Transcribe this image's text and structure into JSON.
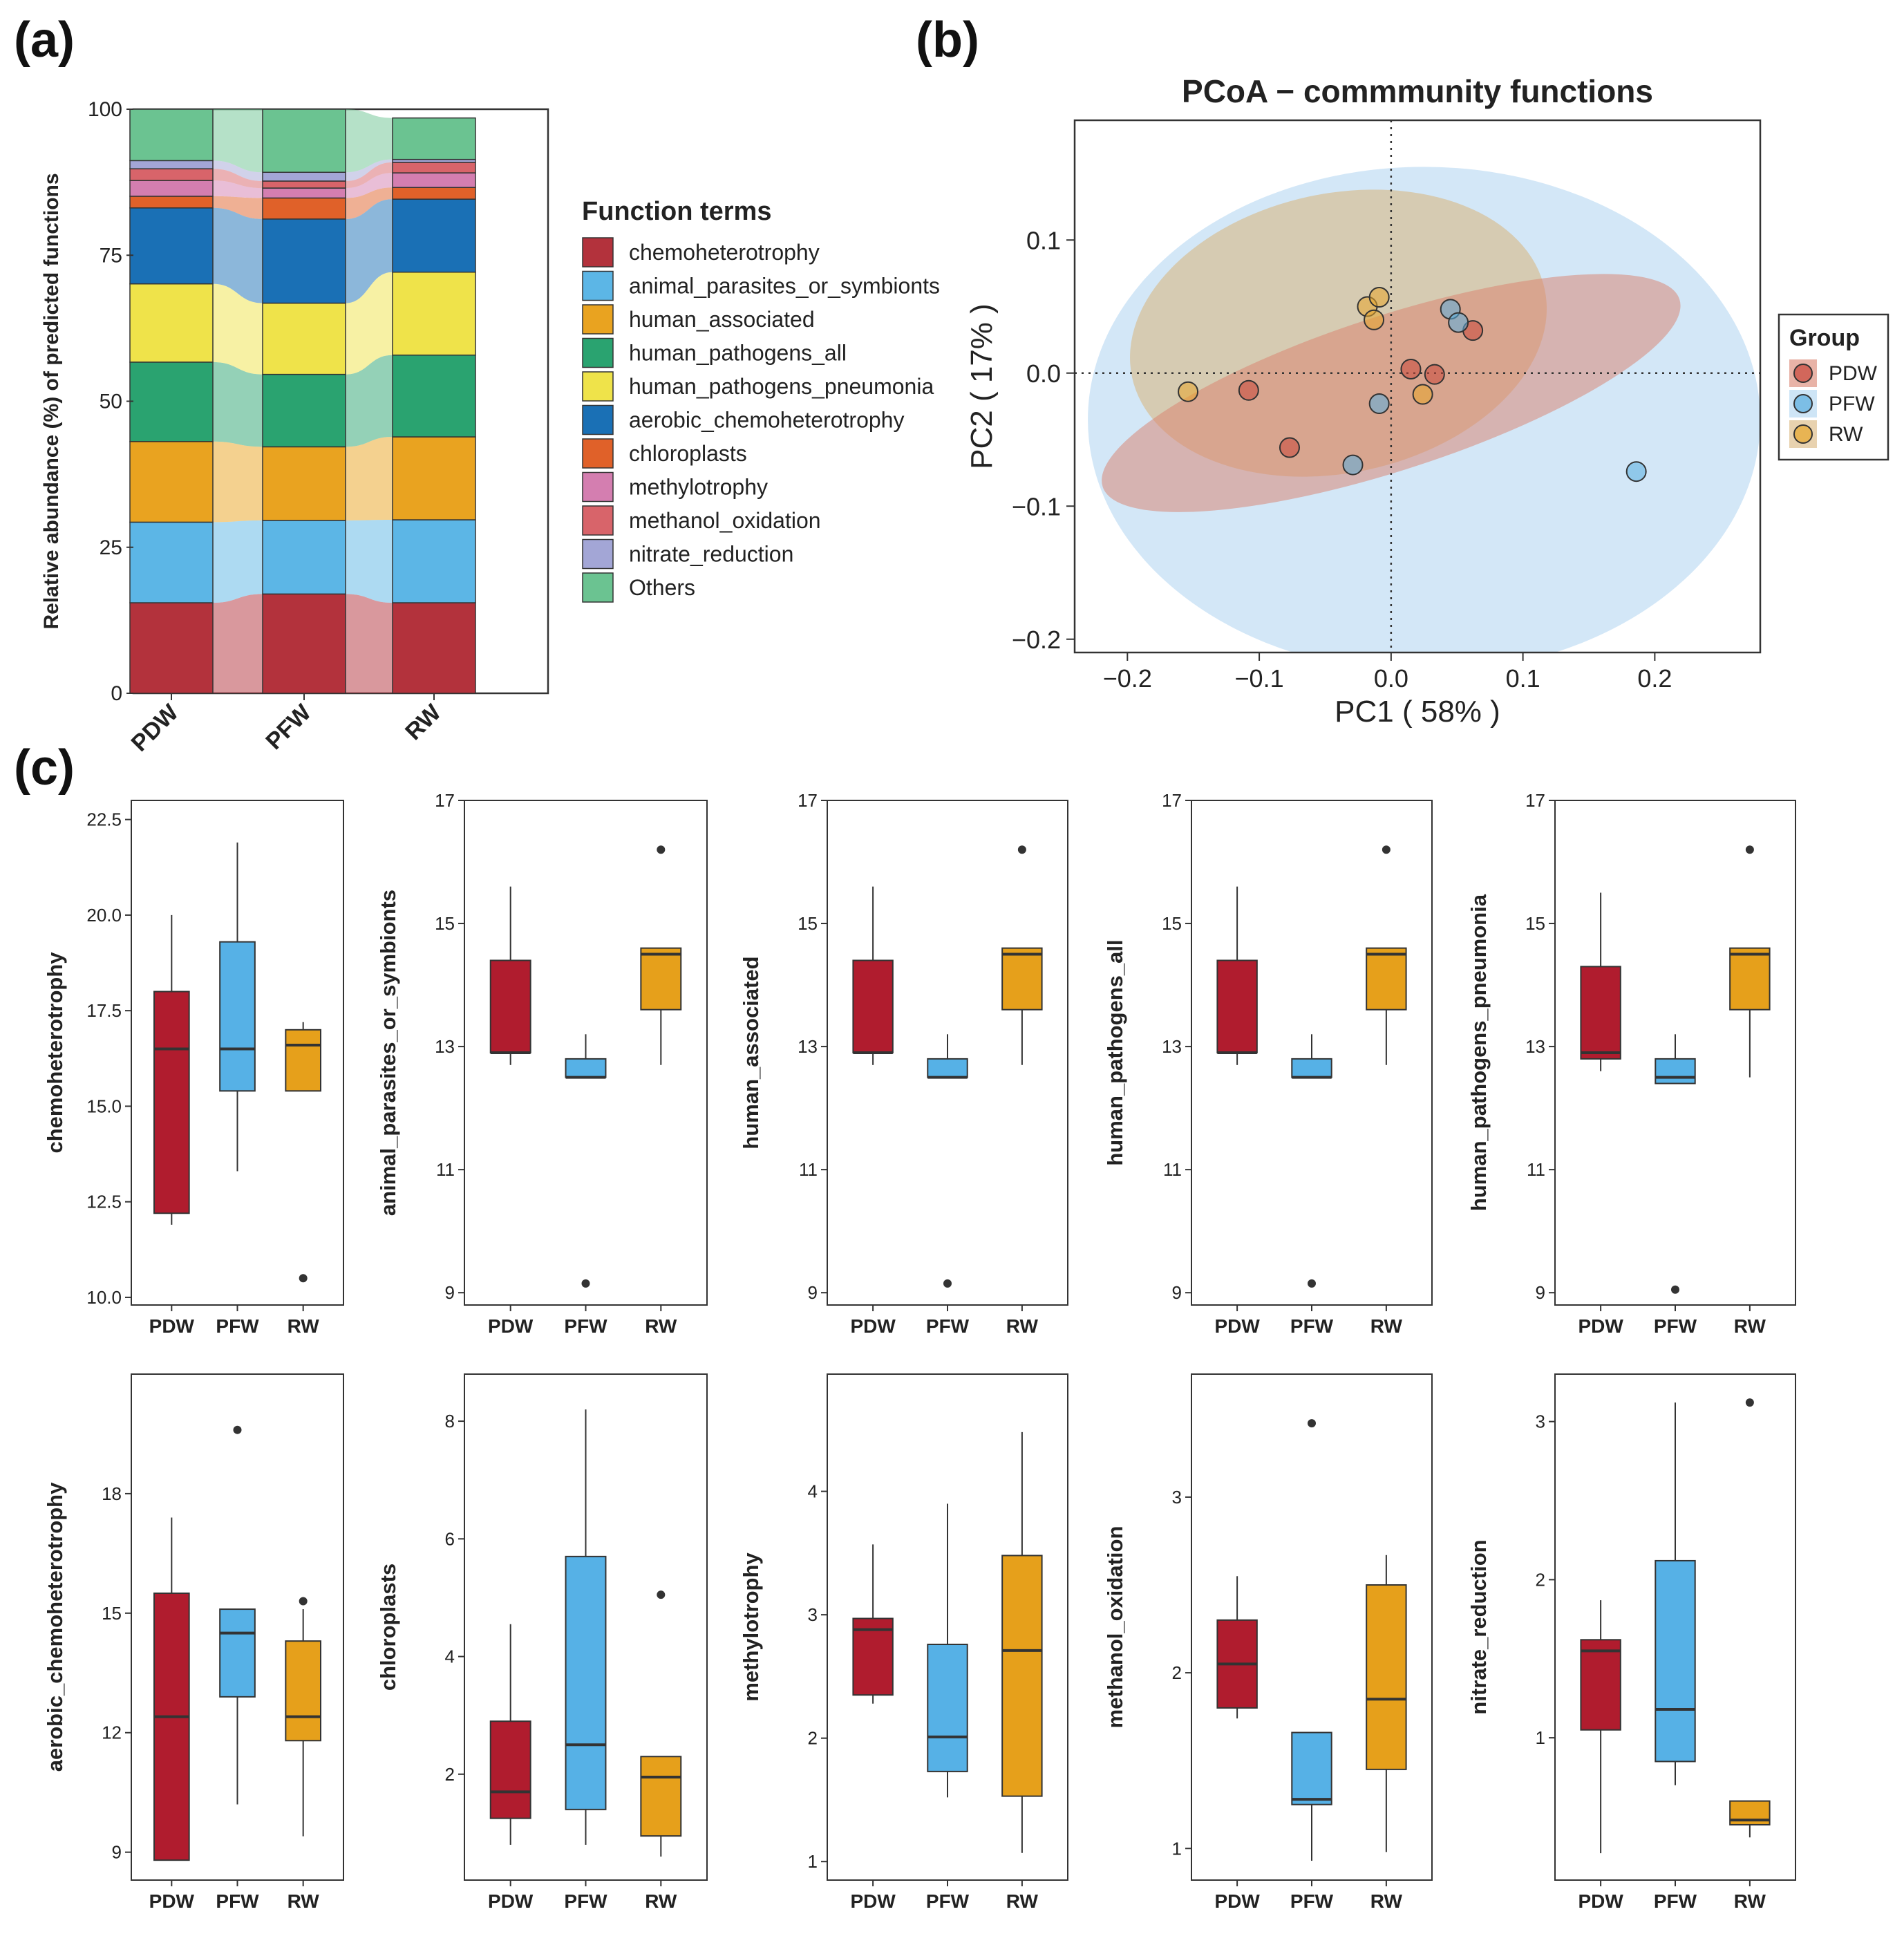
{
  "panels": {
    "a": {
      "label": "(a)"
    },
    "b": {
      "label": "(b)"
    },
    "c": {
      "label": "(c)"
    }
  },
  "colors": {
    "PDW": "#b01c2e",
    "PFW": "#56b1e6",
    "RW": "#e6a01b",
    "outlier": "#333333"
  },
  "chart_data": [
    {
      "id": "a",
      "type": "bar",
      "stacked": true,
      "categories": [
        "PDW",
        "PFW",
        "RW"
      ],
      "ylabel": "Relative abundance (%) of predicted functions",
      "ylim": [
        0,
        100
      ],
      "yticks": [
        0,
        25,
        50,
        75,
        100
      ],
      "legend_title": "Function terms",
      "series": [
        {
          "name": "chemoheterotrophy",
          "color": "#b3323c",
          "values": [
            15.5,
            17.0,
            15.5
          ]
        },
        {
          "name": "animal_parasites_or_symbionts",
          "color": "#5cb6e6",
          "values": [
            13.8,
            12.6,
            14.2
          ]
        },
        {
          "name": "human_associated",
          "color": "#e9a320",
          "values": [
            13.8,
            12.6,
            14.2
          ]
        },
        {
          "name": "human_pathogens_all",
          "color": "#2aa370",
          "values": [
            13.6,
            12.4,
            14.0
          ]
        },
        {
          "name": "human_pathogens_pneumonia",
          "color": "#efe34a",
          "values": [
            13.4,
            12.2,
            14.2
          ]
        },
        {
          "name": "aerobic_chemoheterotrophy",
          "color": "#1a70b5",
          "values": [
            13.0,
            14.4,
            12.5
          ]
        },
        {
          "name": "chloroplasts",
          "color": "#e06129",
          "values": [
            2.0,
            3.6,
            2.0
          ]
        },
        {
          "name": "methylotrophy",
          "color": "#d47eb0",
          "values": [
            2.7,
            1.7,
            2.5
          ]
        },
        {
          "name": "methanol_oxidation",
          "color": "#d8646a",
          "values": [
            2.0,
            1.2,
            1.8
          ]
        },
        {
          "name": "nitrate_reduction",
          "color": "#a3a6d6",
          "values": [
            1.4,
            1.5,
            0.5
          ]
        },
        {
          "name": "Others",
          "color": "#6bc391",
          "values": [
            8.8,
            10.8,
            7.1
          ]
        }
      ]
    },
    {
      "id": "b",
      "type": "scatter",
      "title": "PCoA − commmunity functions",
      "xlabel": "PC1 ( 58% )",
      "ylabel": "PC2 ( 17% )",
      "xlim": [
        -0.24,
        0.28
      ],
      "ylim": [
        -0.21,
        0.19
      ],
      "xticks": [
        -0.2,
        -0.1,
        0.0,
        0.1,
        0.2
      ],
      "xtick_labels": [
        "−0.2",
        "−0.1",
        "0.0",
        "0.1",
        "0.2"
      ],
      "yticks": [
        -0.2,
        -0.1,
        0.0,
        0.1
      ],
      "ytick_labels": [
        "−0.2",
        "−0.1",
        "0.0",
        "0.1"
      ],
      "legend_title": "Group",
      "groups": [
        {
          "name": "PDW",
          "color": "#c9473a",
          "fill": "#d9806c"
        },
        {
          "name": "PFW",
          "color": "#5aaee0",
          "fill": "#aed3f0"
        },
        {
          "name": "RW",
          "color": "#e8a62c",
          "fill": "#d9b47a"
        }
      ],
      "ellipses": [
        {
          "group": "PFW",
          "cx": 0.025,
          "cy": -0.035,
          "rx": 0.255,
          "ry": 0.19,
          "angle": 0,
          "opacity": 0.55
        },
        {
          "group": "RW",
          "cx": -0.04,
          "cy": 0.03,
          "rx": 0.16,
          "ry": 0.105,
          "angle": 12,
          "opacity": 0.55
        },
        {
          "group": "PDW",
          "cx": 0.0,
          "cy": -0.015,
          "rx": 0.23,
          "ry": 0.058,
          "angle": 18,
          "opacity": 0.5
        }
      ],
      "points": [
        {
          "group": "PDW",
          "x": -0.108,
          "y": -0.013
        },
        {
          "group": "PDW",
          "x": -0.077,
          "y": -0.056
        },
        {
          "group": "PDW",
          "x": 0.015,
          "y": 0.003
        },
        {
          "group": "PDW",
          "x": 0.033,
          "y": -0.001
        },
        {
          "group": "PDW",
          "x": 0.062,
          "y": 0.032
        },
        {
          "group": "PFW",
          "x": -0.029,
          "y": -0.069
        },
        {
          "group": "PFW",
          "x": -0.009,
          "y": -0.023
        },
        {
          "group": "PFW",
          "x": 0.045,
          "y": 0.048
        },
        {
          "group": "PFW",
          "x": 0.051,
          "y": 0.038
        },
        {
          "group": "PFW",
          "x": 0.186,
          "y": -0.074
        },
        {
          "group": "RW",
          "x": -0.154,
          "y": -0.014
        },
        {
          "group": "RW",
          "x": -0.018,
          "y": 0.05
        },
        {
          "group": "RW",
          "x": -0.013,
          "y": 0.04
        },
        {
          "group": "RW",
          "x": -0.009,
          "y": 0.057
        },
        {
          "group": "RW",
          "x": 0.024,
          "y": -0.016
        }
      ]
    },
    {
      "id": "c1",
      "type": "box",
      "ylabel": "chemoheterotrophy",
      "categories": [
        "PDW",
        "PFW",
        "RW"
      ],
      "ylim": [
        9.8,
        23.0
      ],
      "yticks": [
        10.0,
        12.5,
        15.0,
        17.5,
        20.0,
        22.5
      ],
      "ytick_labels": [
        "10.0",
        "12.5",
        "15.0",
        "17.5",
        "20.0",
        "22.5"
      ],
      "boxes": [
        {
          "min": 11.9,
          "q1": 12.2,
          "median": 16.5,
          "q3": 18.0,
          "max": 20.0,
          "outliers": []
        },
        {
          "min": 13.3,
          "q1": 15.4,
          "median": 16.5,
          "q3": 19.3,
          "max": 21.9,
          "outliers": []
        },
        {
          "min": 15.4,
          "q1": 15.4,
          "median": 16.6,
          "q3": 17.0,
          "max": 17.2,
          "outliers": [
            10.5
          ]
        }
      ]
    },
    {
      "id": "c2",
      "type": "box",
      "ylabel": "animal_parasites_or_symbionts",
      "categories": [
        "PDW",
        "PFW",
        "RW"
      ],
      "ylim": [
        8.8,
        17.0
      ],
      "yticks": [
        9,
        11,
        13,
        15,
        17
      ],
      "ytick_labels": [
        "9",
        "11",
        "13",
        "15",
        "17"
      ],
      "boxes": [
        {
          "min": 12.7,
          "q1": 12.9,
          "median": 12.9,
          "q3": 14.4,
          "max": 15.6,
          "outliers": []
        },
        {
          "min": 12.5,
          "q1": 12.5,
          "median": 12.5,
          "q3": 12.8,
          "max": 13.2,
          "outliers": [
            9.15
          ]
        },
        {
          "min": 12.7,
          "q1": 13.6,
          "median": 14.5,
          "q3": 14.6,
          "max": 14.6,
          "outliers": [
            16.2
          ]
        }
      ]
    },
    {
      "id": "c3",
      "type": "box",
      "ylabel": "human_associated",
      "categories": [
        "PDW",
        "PFW",
        "RW"
      ],
      "ylim": [
        8.8,
        17.0
      ],
      "yticks": [
        9,
        11,
        13,
        15,
        17
      ],
      "ytick_labels": [
        "9",
        "11",
        "13",
        "15",
        "17"
      ],
      "boxes": [
        {
          "min": 12.7,
          "q1": 12.9,
          "median": 12.9,
          "q3": 14.4,
          "max": 15.6,
          "outliers": []
        },
        {
          "min": 12.5,
          "q1": 12.5,
          "median": 12.5,
          "q3": 12.8,
          "max": 13.2,
          "outliers": [
            9.15
          ]
        },
        {
          "min": 12.7,
          "q1": 13.6,
          "median": 14.5,
          "q3": 14.6,
          "max": 14.6,
          "outliers": [
            16.2
          ]
        }
      ]
    },
    {
      "id": "c4",
      "type": "box",
      "ylabel": "human_pathogens_all",
      "categories": [
        "PDW",
        "PFW",
        "RW"
      ],
      "ylim": [
        8.8,
        17.0
      ],
      "yticks": [
        9,
        11,
        13,
        15,
        17
      ],
      "ytick_labels": [
        "9",
        "11",
        "13",
        "15",
        "17"
      ],
      "boxes": [
        {
          "min": 12.7,
          "q1": 12.9,
          "median": 12.9,
          "q3": 14.4,
          "max": 15.6,
          "outliers": []
        },
        {
          "min": 12.5,
          "q1": 12.5,
          "median": 12.5,
          "q3": 12.8,
          "max": 13.2,
          "outliers": [
            9.15
          ]
        },
        {
          "min": 12.7,
          "q1": 13.6,
          "median": 14.5,
          "q3": 14.6,
          "max": 14.6,
          "outliers": [
            16.2
          ]
        }
      ]
    },
    {
      "id": "c5",
      "type": "box",
      "ylabel": "human_pathogens_pneumonia",
      "categories": [
        "PDW",
        "PFW",
        "RW"
      ],
      "ylim": [
        8.8,
        17.0
      ],
      "yticks": [
        9,
        11,
        13,
        15,
        17
      ],
      "ytick_labels": [
        "9",
        "11",
        "13",
        "15",
        "17"
      ],
      "boxes": [
        {
          "min": 12.6,
          "q1": 12.8,
          "median": 12.9,
          "q3": 14.3,
          "max": 15.5,
          "outliers": []
        },
        {
          "min": 12.4,
          "q1": 12.4,
          "median": 12.5,
          "q3": 12.8,
          "max": 13.2,
          "outliers": [
            9.05
          ]
        },
        {
          "min": 12.5,
          "q1": 13.6,
          "median": 14.5,
          "q3": 14.6,
          "max": 14.6,
          "outliers": [
            16.2
          ]
        }
      ]
    },
    {
      "id": "c6",
      "type": "box",
      "ylabel": "aerobic_chemoheterotrophy",
      "categories": [
        "PDW",
        "PFW",
        "RW"
      ],
      "ylim": [
        8.3,
        21.0
      ],
      "yticks": [
        9,
        12,
        15,
        18
      ],
      "ytick_labels": [
        "9",
        "12",
        "15",
        "18"
      ],
      "boxes": [
        {
          "min": 8.8,
          "q1": 8.8,
          "median": 12.4,
          "q3": 15.5,
          "max": 17.4,
          "outliers": []
        },
        {
          "min": 10.2,
          "q1": 12.9,
          "median": 14.5,
          "q3": 15.1,
          "max": 15.1,
          "outliers": [
            19.6
          ]
        },
        {
          "min": 9.4,
          "q1": 11.8,
          "median": 12.4,
          "q3": 14.3,
          "max": 15.1,
          "outliers": [
            15.3
          ]
        }
      ]
    },
    {
      "id": "c7",
      "type": "box",
      "ylabel": "chloroplasts",
      "categories": [
        "PDW",
        "PFW",
        "RW"
      ],
      "ylim": [
        0.2,
        8.8
      ],
      "yticks": [
        2,
        4,
        6,
        8
      ],
      "ytick_labels": [
        "2",
        "4",
        "6",
        "8"
      ],
      "boxes": [
        {
          "min": 0.8,
          "q1": 1.25,
          "median": 1.7,
          "q3": 2.9,
          "max": 4.55,
          "outliers": []
        },
        {
          "min": 0.8,
          "q1": 1.4,
          "median": 2.5,
          "q3": 5.7,
          "max": 8.2,
          "outliers": []
        },
        {
          "min": 0.6,
          "q1": 0.95,
          "median": 1.95,
          "q3": 2.3,
          "max": 2.3,
          "outliers": [
            5.05
          ]
        }
      ]
    },
    {
      "id": "c8",
      "type": "box",
      "ylabel": "methylotrophy",
      "categories": [
        "PDW",
        "PFW",
        "RW"
      ],
      "ylim": [
        0.85,
        4.95
      ],
      "yticks": [
        1,
        2,
        3,
        4
      ],
      "ytick_labels": [
        "1",
        "2",
        "3",
        "4"
      ],
      "boxes": [
        {
          "min": 2.28,
          "q1": 2.35,
          "median": 2.88,
          "q3": 2.97,
          "max": 3.57,
          "outliers": []
        },
        {
          "min": 1.52,
          "q1": 1.73,
          "median": 2.01,
          "q3": 2.76,
          "max": 3.9,
          "outliers": []
        },
        {
          "min": 1.07,
          "q1": 1.53,
          "median": 2.71,
          "q3": 3.48,
          "max": 4.48,
          "outliers": []
        }
      ]
    },
    {
      "id": "c9",
      "type": "box",
      "ylabel": "methanol_oxidation",
      "categories": [
        "PDW",
        "PFW",
        "RW"
      ],
      "ylim": [
        0.82,
        3.7
      ],
      "yticks": [
        1,
        2,
        3
      ],
      "ytick_labels": [
        "1",
        "2",
        "3"
      ],
      "boxes": [
        {
          "min": 1.74,
          "q1": 1.8,
          "median": 2.05,
          "q3": 2.3,
          "max": 2.55,
          "outliers": []
        },
        {
          "min": 0.93,
          "q1": 1.25,
          "median": 1.28,
          "q3": 1.66,
          "max": 1.66,
          "outliers": [
            3.42
          ]
        },
        {
          "min": 0.98,
          "q1": 1.45,
          "median": 1.85,
          "q3": 2.5,
          "max": 2.67,
          "outliers": []
        }
      ]
    },
    {
      "id": "c10",
      "type": "box",
      "ylabel": "nitrate_reduction",
      "categories": [
        "PDW",
        "PFW",
        "RW"
      ],
      "ylim": [
        0.1,
        3.3
      ],
      "yticks": [
        1,
        2,
        3
      ],
      "ytick_labels": [
        "1",
        "2",
        "3"
      ],
      "boxes": [
        {
          "min": 0.27,
          "q1": 1.05,
          "median": 1.55,
          "q3": 1.62,
          "max": 1.87,
          "outliers": []
        },
        {
          "min": 0.7,
          "q1": 0.85,
          "median": 1.18,
          "q3": 2.12,
          "max": 3.12,
          "outliers": []
        },
        {
          "min": 0.37,
          "q1": 0.45,
          "median": 0.48,
          "q3": 0.6,
          "max": 0.6,
          "outliers": [
            3.12
          ]
        }
      ]
    }
  ]
}
